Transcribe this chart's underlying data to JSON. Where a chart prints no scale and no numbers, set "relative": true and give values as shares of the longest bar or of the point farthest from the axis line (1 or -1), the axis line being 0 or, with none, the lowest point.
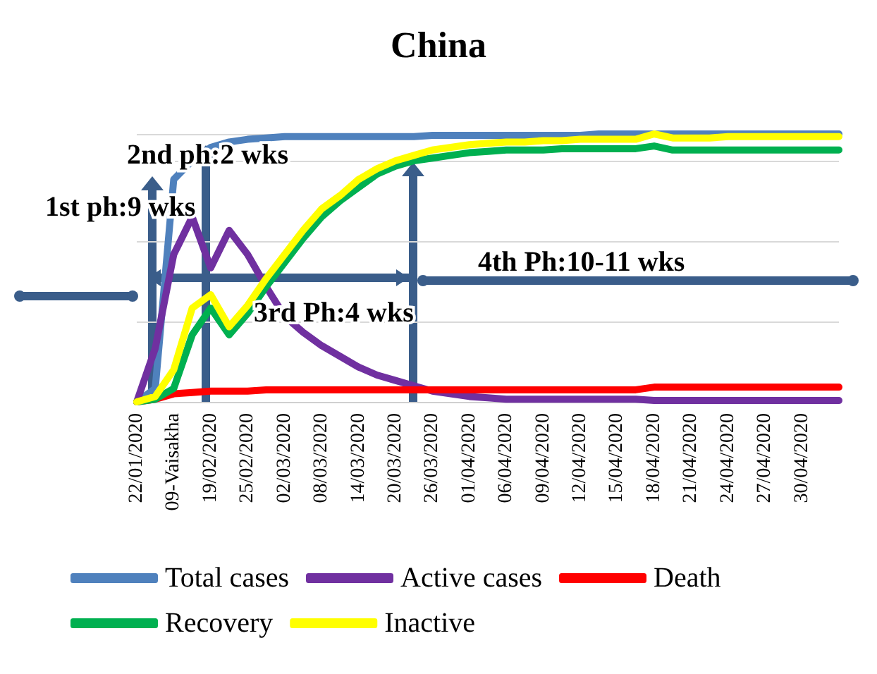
{
  "chart_data": {
    "type": "line",
    "title": "China",
    "relative": true,
    "grid": "y",
    "legend": "bottom",
    "marker": "none",
    "line_style": "solid",
    "categories": [
      "22/01/2020",
      null,
      "09-Vaisakha",
      null,
      "19/02/2020",
      null,
      "25/02/2020",
      null,
      "02/03/2020",
      null,
      "08/03/2020",
      null,
      "14/03/2020",
      null,
      "20/03/2020",
      null,
      "26/03/2020",
      null,
      "01/04/2020",
      null,
      "06/04/2020",
      null,
      "09/04/2020",
      null,
      "12/04/2020",
      null,
      "15/04/2020",
      null,
      "18/04/2020",
      null,
      "21/04/2020",
      null,
      "24/04/2020",
      null,
      "27/04/2020",
      null,
      "30/04/2020",
      null,
      null
    ],
    "series": [
      {
        "name": "Total cases",
        "color": "#4f81bd",
        "values": [
          0,
          0.05,
          0.83,
          0.9,
          0.95,
          0.97,
          0.98,
          0.985,
          0.99,
          0.99,
          0.99,
          0.99,
          0.99,
          0.99,
          0.99,
          0.99,
          0.995,
          0.995,
          0.995,
          0.995,
          0.995,
          0.995,
          0.995,
          0.995,
          0.995,
          1,
          1,
          1,
          1,
          1,
          1,
          1,
          1,
          1,
          1,
          1,
          1,
          1,
          1
        ]
      },
      {
        "name": "Active cases",
        "color": "#7030a0",
        "values": [
          0,
          0.2,
          0.55,
          0.69,
          0.5,
          0.64,
          0.55,
          0.43,
          0.32,
          0.26,
          0.21,
          0.17,
          0.13,
          0.1,
          0.08,
          0.06,
          0.04,
          0.03,
          0.02,
          0.015,
          0.01,
          0.01,
          0.01,
          0.01,
          0.01,
          0.01,
          0.01,
          0.01,
          0.005,
          0.005,
          0.005,
          0.005,
          0.005,
          0.005,
          0.005,
          0.005,
          0.005,
          0.005,
          0.005
        ]
      },
      {
        "name": "Death",
        "color": "#ff0000",
        "values": [
          0,
          0.01,
          0.03,
          0.035,
          0.04,
          0.04,
          0.04,
          0.045,
          0.045,
          0.045,
          0.045,
          0.045,
          0.045,
          0.045,
          0.045,
          0.045,
          0.045,
          0.045,
          0.045,
          0.045,
          0.045,
          0.045,
          0.045,
          0.045,
          0.045,
          0.045,
          0.045,
          0.045,
          0.055,
          0.055,
          0.055,
          0.055,
          0.055,
          0.055,
          0.055,
          0.055,
          0.055,
          0.055,
          0.055
        ]
      },
      {
        "name": "Recovery",
        "color": "#00b050",
        "values": [
          0,
          0.01,
          0.05,
          0.25,
          0.35,
          0.25,
          0.33,
          0.43,
          0.52,
          0.61,
          0.69,
          0.75,
          0.8,
          0.85,
          0.88,
          0.9,
          0.91,
          0.92,
          0.93,
          0.935,
          0.94,
          0.94,
          0.94,
          0.945,
          0.945,
          0.945,
          0.945,
          0.945,
          0.955,
          0.94,
          0.94,
          0.94,
          0.94,
          0.94,
          0.94,
          0.94,
          0.94,
          0.94,
          0.94
        ]
      },
      {
        "name": "Inactive",
        "color": "#ffff00",
        "values": [
          0,
          0.02,
          0.12,
          0.35,
          0.4,
          0.28,
          0.36,
          0.46,
          0.55,
          0.64,
          0.72,
          0.77,
          0.83,
          0.87,
          0.9,
          0.92,
          0.94,
          0.95,
          0.96,
          0.965,
          0.97,
          0.97,
          0.975,
          0.975,
          0.98,
          0.98,
          0.98,
          0.98,
          1,
          0.985,
          0.985,
          0.985,
          0.99,
          0.99,
          0.99,
          0.99,
          0.99,
          0.99,
          0.99
        ]
      }
    ],
    "annotations": [
      "1st ph:9 wks",
      "2nd ph:2 wks",
      "3rd Ph:4 wks",
      "4th Ph:10-11 wks"
    ]
  }
}
